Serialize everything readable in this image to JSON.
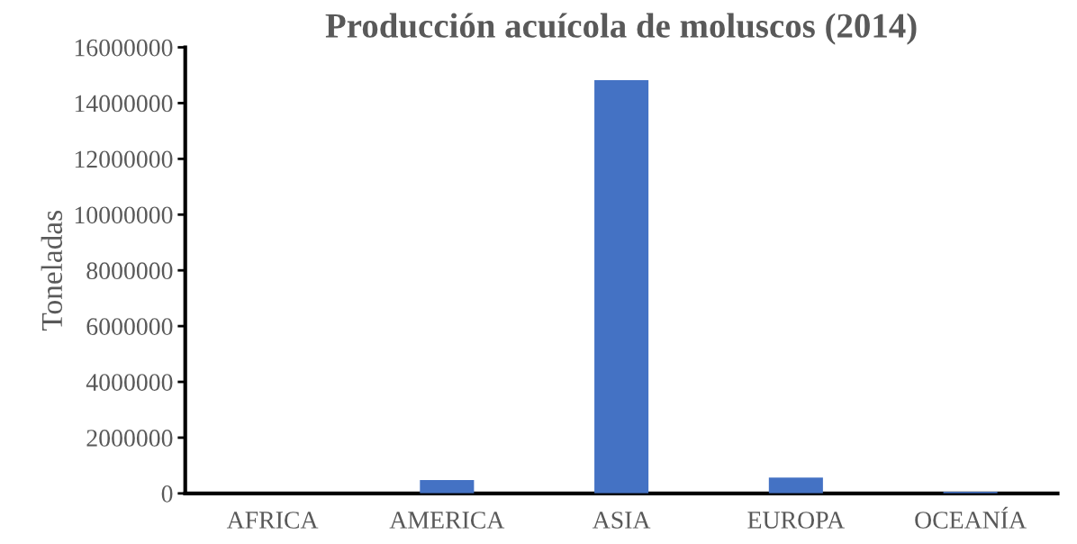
{
  "chart_data": {
    "type": "bar",
    "title": "Producción acuícola de moluscos (2014)",
    "ylabel": "Toneladas",
    "categories": [
      "AFRICA",
      "AMERICA",
      "ASIA",
      "EUROPA",
      "OCEANÍA"
    ],
    "values": [
      0,
      480000,
      14820000,
      570000,
      60000
    ],
    "color": "#4472c4",
    "ylim": [
      0,
      16000000
    ],
    "yticks": [
      0,
      2000000,
      4000000,
      6000000,
      8000000,
      10000000,
      12000000,
      14000000,
      16000000
    ],
    "grid": false,
    "legend": false
  }
}
